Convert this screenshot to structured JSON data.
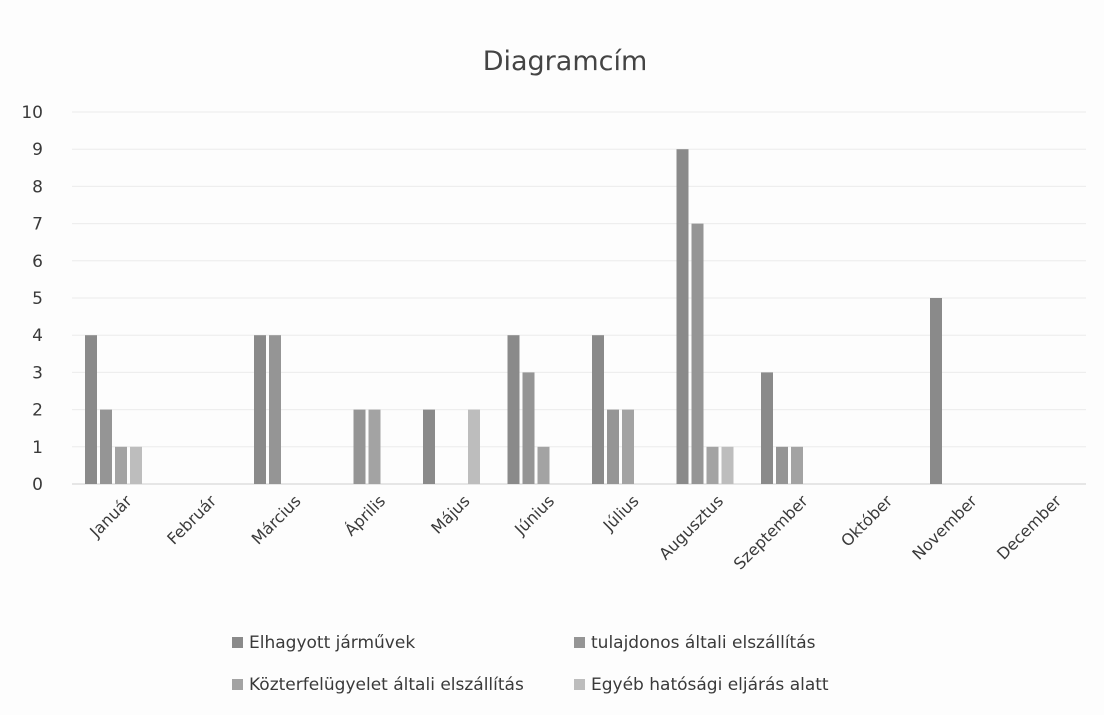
{
  "chart_data": {
    "type": "bar",
    "title": "Diagramcím",
    "xlabel": "",
    "ylabel": "",
    "ylim": [
      0,
      10
    ],
    "yticks": [
      0,
      1,
      2,
      3,
      4,
      5,
      6,
      7,
      8,
      9,
      10
    ],
    "grid": true,
    "legend_position": "bottom",
    "categories": [
      "Január",
      "Február",
      "Március",
      "Április",
      "Május",
      "Június",
      "Július",
      "Augusztus",
      "Szeptember",
      "Október",
      "November",
      "December"
    ],
    "series": [
      {
        "name": "Elhagyott járművek",
        "color": "#8a8a8a",
        "values": [
          4,
          0,
          4,
          0,
          2,
          4,
          4,
          9,
          3,
          0,
          5,
          0
        ]
      },
      {
        "name": "tulajdonos általi elszállítás",
        "color": "#959595",
        "values": [
          2,
          0,
          4,
          2,
          0,
          3,
          2,
          7,
          1,
          0,
          0,
          0
        ]
      },
      {
        "name": "Közterfelügyelet általi elszállítás",
        "color": "#a3a3a3",
        "values": [
          1,
          0,
          0,
          2,
          0,
          1,
          2,
          1,
          1,
          0,
          0,
          0
        ]
      },
      {
        "name": "Egyéb hatósági eljárás alatt",
        "color": "#bdbdbd",
        "values": [
          1,
          0,
          0,
          0,
          2,
          0,
          0,
          1,
          0,
          0,
          0,
          0
        ]
      }
    ]
  }
}
